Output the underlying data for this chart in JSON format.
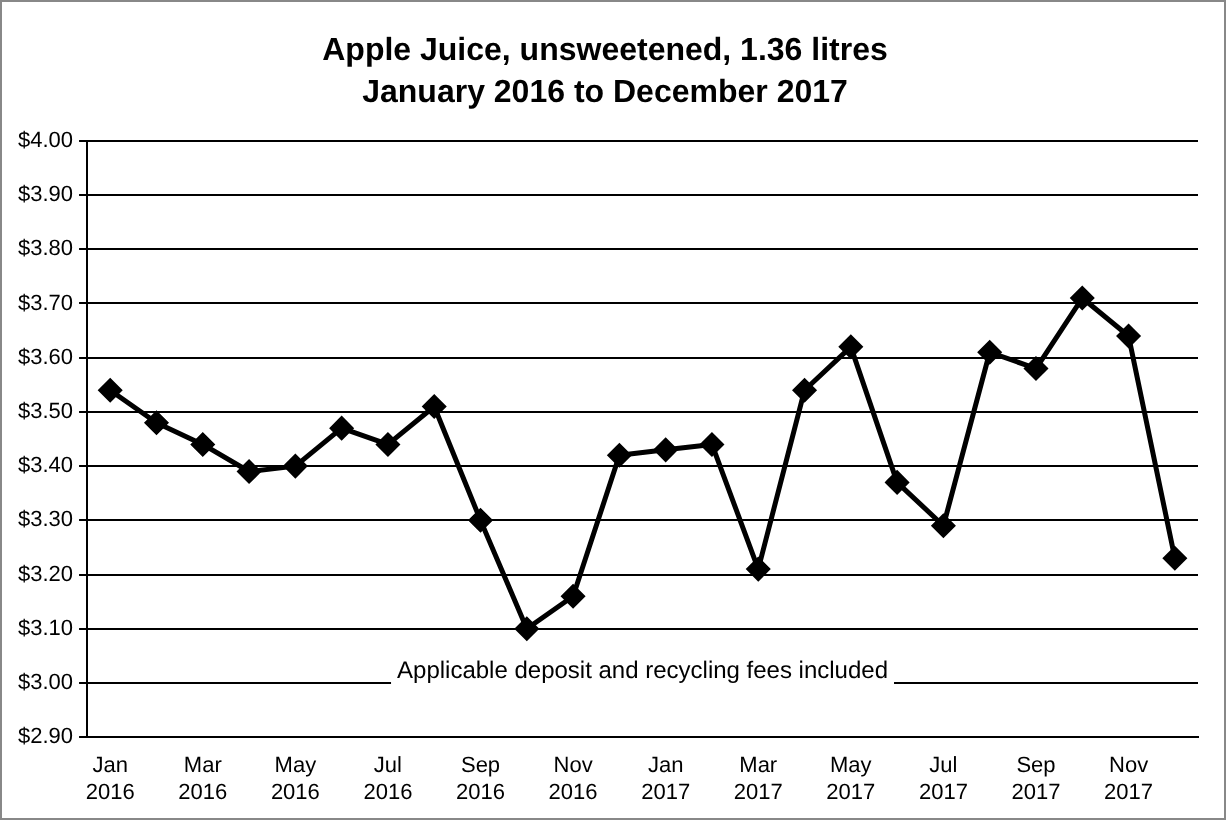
{
  "chart_data": {
    "type": "line",
    "title": "Apple Juice, unsweetened, 1.36 litres",
    "subtitle": "January 2016 to December 2017",
    "categories": [
      "Jan 2016",
      null,
      "Mar 2016",
      null,
      "May 2016",
      null,
      "Jul 2016",
      null,
      "Sep 2016",
      null,
      "Nov 2016",
      null,
      "Jan 2017",
      null,
      "Mar 2017",
      null,
      "May 2017",
      null,
      "Jul 2017",
      null,
      "Sep 2017",
      null,
      "Nov 2017",
      null
    ],
    "series": [
      {
        "color": "#000000",
        "values": [
          3.54,
          3.48,
          3.44,
          3.39,
          3.4,
          3.47,
          3.44,
          3.51,
          3.3,
          3.1,
          3.16,
          3.42,
          3.43,
          3.44,
          3.21,
          3.54,
          3.62,
          3.37,
          3.29,
          3.61,
          3.58,
          3.71,
          3.64,
          3.23
        ]
      }
    ],
    "ylim": [
      2.9,
      4.0
    ],
    "yticks": [
      {
        "value": 2.9,
        "label": "$2.90"
      },
      {
        "value": 3.0,
        "label": "$3.00"
      },
      {
        "value": 3.1,
        "label": "$3.10"
      },
      {
        "value": 3.2,
        "label": "$3.20"
      },
      {
        "value": 3.3,
        "label": "$3.30"
      },
      {
        "value": 3.4,
        "label": "$3.40"
      },
      {
        "value": 3.5,
        "label": "$3.50"
      },
      {
        "value": 3.6,
        "label": "$3.60"
      },
      {
        "value": 3.7,
        "label": "$3.70"
      },
      {
        "value": 3.8,
        "label": "$3.80"
      },
      {
        "value": 3.9,
        "label": "$3.90"
      },
      {
        "value": 4.0,
        "label": "$4.00"
      }
    ],
    "grid": "y",
    "legend": false,
    "marker": "diamond",
    "line_style": "solid",
    "annotations": [
      "Applicable deposit and recycling fees included"
    ]
  }
}
